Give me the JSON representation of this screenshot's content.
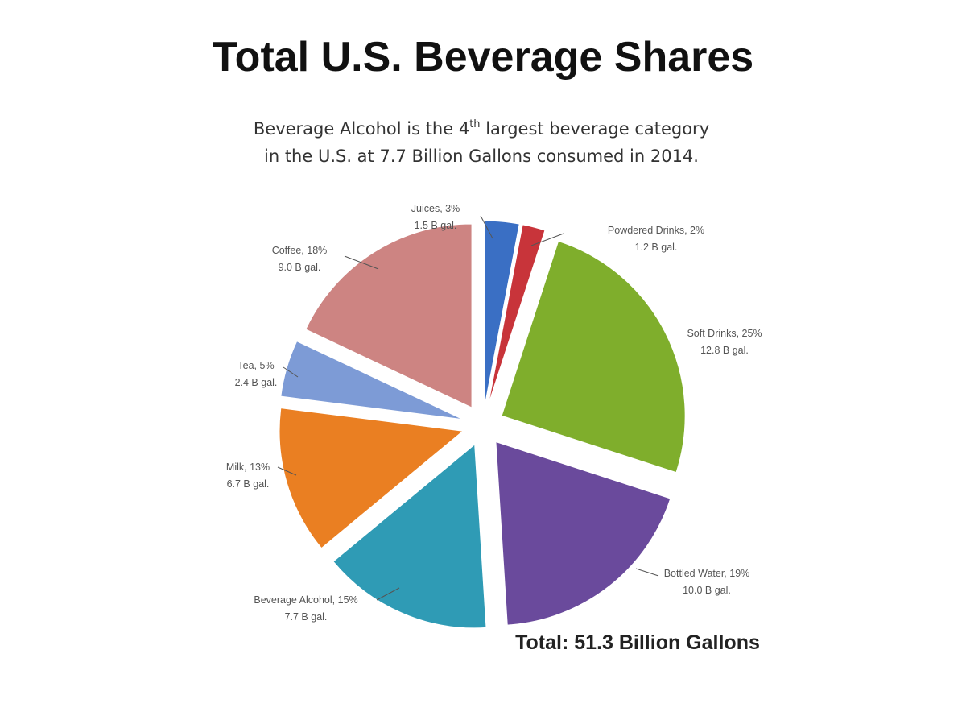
{
  "header": {
    "title": "Total U.S. Beverage Shares",
    "subtitle_line1_pre": "Beverage Alcohol is the 4",
    "subtitle_line1_sup": "th",
    "subtitle_line1_post": " largest beverage category",
    "subtitle_line2": "in the U.S. at 7.7 Billion Gallons consumed in 2014."
  },
  "footer": {
    "total_label": "Total: 51.3 Billion Gallons"
  },
  "chart_data": {
    "type": "pie",
    "title": "Total U.S. Beverage Shares",
    "total": "Total: 51.3 Billion Gallons",
    "unit": "B gal.",
    "slices": [
      {
        "name": "Juices",
        "percent": 3,
        "value": 1.5,
        "line1": "Juices, 3%",
        "line2": "1.5 B gal.",
        "color": "#3a6fc4"
      },
      {
        "name": "Powdered Drinks",
        "percent": 2,
        "value": 1.2,
        "line1": "Powdered Drinks, 2%",
        "line2": "1.2 B gal.",
        "color": "#c8343a"
      },
      {
        "name": "Soft Drinks",
        "percent": 25,
        "value": 12.8,
        "line1": "Soft Drinks, 25%",
        "line2": "12.8 B gal.",
        "color": "#7fae2c"
      },
      {
        "name": "Bottled Water",
        "percent": 19,
        "value": 10.0,
        "line1": "Bottled Water, 19%",
        "line2": "10.0 B gal.",
        "color": "#6a4a9c"
      },
      {
        "name": "Beverage Alcohol",
        "percent": 15,
        "value": 7.7,
        "line1": "Beverage Alcohol, 15%",
        "line2": "7.7 B gal.",
        "color": "#2f9bb5"
      },
      {
        "name": "Milk",
        "percent": 13,
        "value": 6.7,
        "line1": "Milk, 13%",
        "line2": "6.7 B gal.",
        "color": "#ea7f22"
      },
      {
        "name": "Tea",
        "percent": 5,
        "value": 2.4,
        "line1": "Tea, 5%",
        "line2": "2.4 B gal.",
        "color": "#7d9bd6"
      },
      {
        "name": "Coffee",
        "percent": 18,
        "value": 9.0,
        "line1": "Coffee, 18%",
        "line2": "9.0  B gal.",
        "color": "#cd8482"
      }
    ]
  }
}
